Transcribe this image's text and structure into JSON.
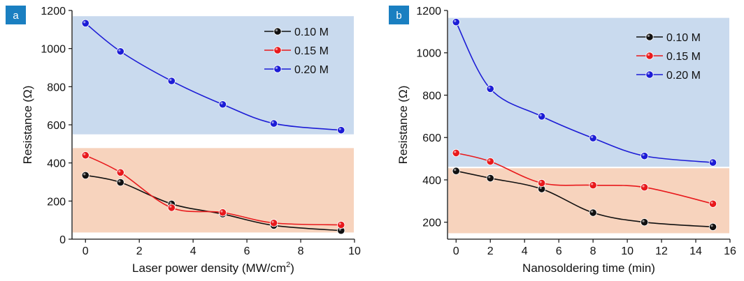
{
  "chart_data": [
    {
      "type": "line",
      "panel_label": "a",
      "xlabel": "Laser power density (MW/cm",
      "xlabel_sup": "2",
      "xlabel_end": ")",
      "ylabel": "Resistance (Ω)",
      "xlim": [
        -0.5,
        10
      ],
      "ylim": [
        0,
        1200
      ],
      "xticks": [
        0,
        2,
        4,
        6,
        8,
        10
      ],
      "yticks": [
        0,
        200,
        400,
        600,
        800,
        1000,
        1200
      ],
      "bands": [
        {
          "range": [
            550,
            1170
          ],
          "color": "#c9daee"
        },
        {
          "range": [
            35,
            478
          ],
          "color": "#f7d3bd"
        }
      ],
      "legend_position": "top-right",
      "series": [
        {
          "name": "0.10 M",
          "color": "#111111",
          "x": [
            0,
            1.3,
            3.2,
            5.1,
            7.0,
            9.5
          ],
          "y": [
            335,
            298,
            185,
            132,
            72,
            45
          ]
        },
        {
          "name": "0.15 M",
          "color": "#e8191c",
          "x": [
            0,
            1.3,
            3.2,
            5.1,
            7.0,
            9.5
          ],
          "y": [
            440,
            350,
            165,
            140,
            85,
            75
          ]
        },
        {
          "name": "0.20 M",
          "color": "#1c1cd6",
          "x": [
            0,
            1.3,
            3.2,
            5.1,
            7.0,
            9.5
          ],
          "y": [
            1133,
            985,
            830,
            707,
            607,
            572
          ]
        }
      ]
    },
    {
      "type": "line",
      "panel_label": "b",
      "xlabel": "Nanosoldering time (min)",
      "xlabel_sup": "",
      "xlabel_end": "",
      "ylabel": "Resistance (Ω)",
      "xlim": [
        -0.5,
        16
      ],
      "ylim": [
        120,
        1200
      ],
      "xticks": [
        0,
        2,
        4,
        6,
        8,
        10,
        12,
        14,
        16
      ],
      "yticks": [
        200,
        400,
        600,
        800,
        1000,
        1200
      ],
      "bands": [
        {
          "range": [
            462,
            1165
          ],
          "color": "#c9daee"
        },
        {
          "range": [
            148,
            455
          ],
          "color": "#f7d3bd"
        }
      ],
      "legend_position": "top-right",
      "series": [
        {
          "name": "0.10 M",
          "color": "#111111",
          "x": [
            0,
            2,
            5,
            8,
            11,
            15
          ],
          "y": [
            442,
            408,
            357,
            245,
            200,
            178
          ]
        },
        {
          "name": "0.15 M",
          "color": "#e8191c",
          "x": [
            0,
            2,
            5,
            8,
            11,
            15
          ],
          "y": [
            527,
            487,
            385,
            375,
            365,
            287
          ]
        },
        {
          "name": "0.20 M",
          "color": "#1c1cd6",
          "x": [
            0,
            2,
            5,
            8,
            11,
            15
          ],
          "y": [
            1145,
            830,
            700,
            597,
            513,
            482
          ]
        }
      ]
    }
  ]
}
